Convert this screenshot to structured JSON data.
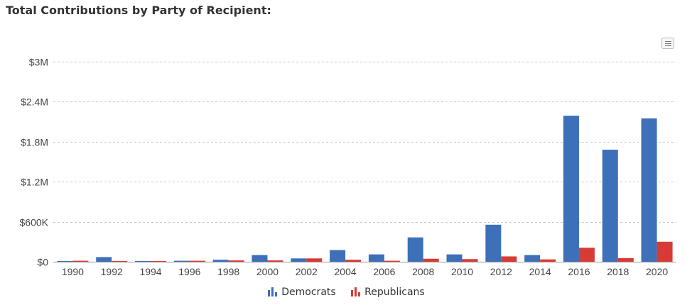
{
  "title": "Total Contributions by Party of Recipient:",
  "colors": {
    "democrats": "#3d70b8",
    "republicans": "#d83a36",
    "grid": "#c8c8c8",
    "axis": "#444444"
  },
  "menu": {
    "icon": "hamburger-menu-icon"
  },
  "chart_data": {
    "type": "bar",
    "title": "Total Contributions by Party of Recipient:",
    "xlabel": "",
    "ylabel": "",
    "ylim": [
      0,
      3000000
    ],
    "yticks": [
      0,
      600000,
      1200000,
      1800000,
      2400000,
      3000000
    ],
    "ytick_labels": [
      "$0",
      "$600K",
      "$1.2M",
      "$1.8M",
      "$2.4M",
      "$3M"
    ],
    "grid": true,
    "legend_position": "bottom-center",
    "categories": [
      "1990",
      "1992",
      "1994",
      "1996",
      "1998",
      "2000",
      "2002",
      "2004",
      "2006",
      "2008",
      "2010",
      "2012",
      "2014",
      "2016",
      "2018",
      "2020"
    ],
    "series": [
      {
        "name": "Democrats",
        "color": "#3d70b8",
        "values": [
          5000,
          70000,
          12000,
          15000,
          30000,
          100000,
          50000,
          175000,
          110000,
          365000,
          110000,
          555000,
          100000,
          2190000,
          1680000,
          2150000
        ]
      },
      {
        "name": "Republicans",
        "color": "#d83a36",
        "values": [
          15000,
          10000,
          3000,
          15000,
          20000,
          20000,
          50000,
          30000,
          15000,
          45000,
          40000,
          80000,
          35000,
          210000,
          55000,
          300000
        ]
      }
    ]
  }
}
